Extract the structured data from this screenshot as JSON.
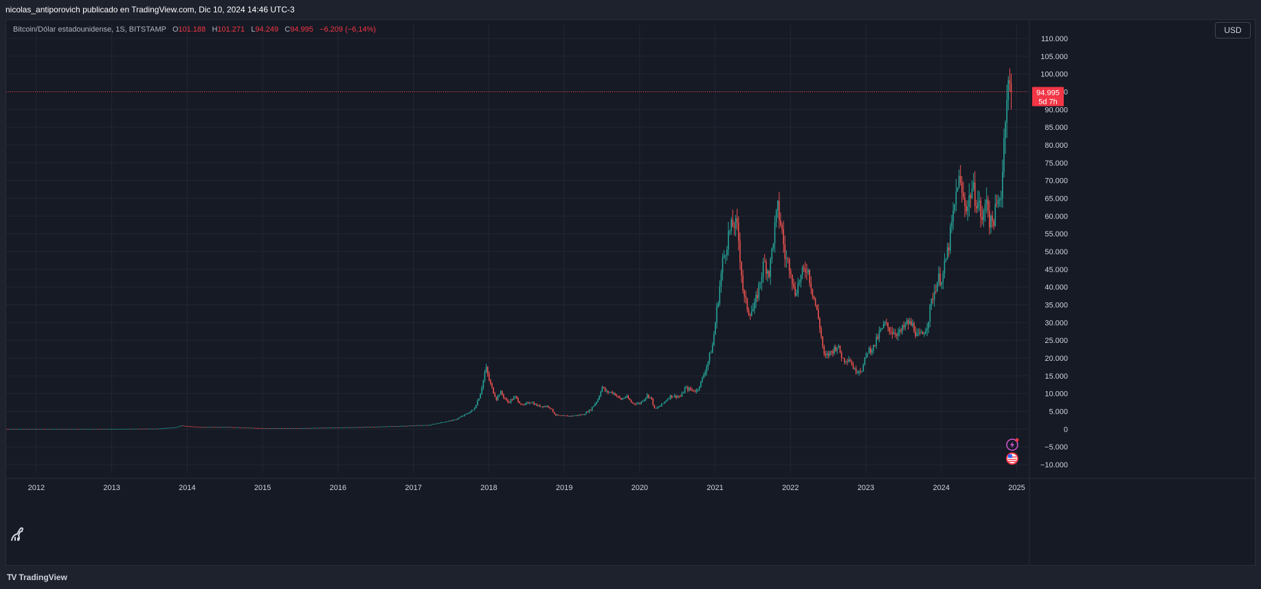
{
  "header": {
    "publish_line": "nicolas_antiporovich publicado en TradingView.com, Dic 10, 2024 14:46 UTC-3"
  },
  "legend": {
    "symbol": "Bitcoin/Dólar estadounidense, 1S, BITSTAMP",
    "o_label": "O",
    "o_value": "101.188",
    "h_label": "H",
    "h_value": "101.271",
    "l_label": "L",
    "l_value": "94.249",
    "c_label": "C",
    "c_value": "94.995",
    "change": "−6.209 (−6,14%)"
  },
  "currency_button": "USD",
  "price_tag": {
    "price": "94.995",
    "countdown": "5d 7h"
  },
  "footer": {
    "brand": "TradingView",
    "brand_mark": "TV"
  },
  "colors": {
    "up": "#26a69a",
    "down": "#ef5350",
    "last_price": "#f23645",
    "grid": "#232734",
    "axis_text": "#d1d4dc"
  },
  "icons": [
    "dino-icon",
    "lightning-icon",
    "us-flag-icon",
    "tradingview-logo-icon"
  ],
  "chart_data": {
    "type": "candlestick",
    "ylim": [
      -10000,
      110000
    ],
    "xlim": [
      2011.6,
      2025.15
    ],
    "y_ticks": [
      "110.000",
      "105.000",
      "100.000",
      "95.000",
      "90.000",
      "85.000",
      "80.000",
      "75.000",
      "70.000",
      "65.000",
      "60.000",
      "55.000",
      "50.000",
      "45.000",
      "40.000",
      "35.000",
      "30.000",
      "25.000",
      "20.000",
      "15.000",
      "10.000",
      "5.000",
      "0",
      "−5.000",
      "−10.000"
    ],
    "y_tick_values": [
      110000,
      105000,
      100000,
      95000,
      90000,
      85000,
      80000,
      75000,
      70000,
      65000,
      60000,
      55000,
      50000,
      45000,
      40000,
      35000,
      30000,
      25000,
      20000,
      15000,
      10000,
      5000,
      0,
      -5000,
      -10000
    ],
    "x_ticks": [
      "2012",
      "2013",
      "2014",
      "2015",
      "2016",
      "2017",
      "2018",
      "2019",
      "2020",
      "2021",
      "2022",
      "2023",
      "2024",
      "2025"
    ],
    "x_tick_values": [
      2012,
      2013,
      2014,
      2015,
      2016,
      2017,
      2018,
      2019,
      2020,
      2021,
      2022,
      2023,
      2024,
      2025
    ],
    "last_price": 94995,
    "price_path": [
      [
        2011.6,
        5
      ],
      [
        2012.0,
        6
      ],
      [
        2012.5,
        8
      ],
      [
        2013.0,
        13
      ],
      [
        2013.3,
        100
      ],
      [
        2013.6,
        120
      ],
      [
        2013.85,
        500
      ],
      [
        2013.92,
        1000
      ],
      [
        2014.0,
        800
      ],
      [
        2014.2,
        550
      ],
      [
        2014.5,
        600
      ],
      [
        2014.8,
        380
      ],
      [
        2015.0,
        250
      ],
      [
        2015.5,
        250
      ],
      [
        2015.9,
        400
      ],
      [
        2016.0,
        430
      ],
      [
        2016.5,
        650
      ],
      [
        2016.9,
        900
      ],
      [
        2017.0,
        1000
      ],
      [
        2017.2,
        1100
      ],
      [
        2017.4,
        2000
      ],
      [
        2017.55,
        2600
      ],
      [
        2017.7,
        4200
      ],
      [
        2017.8,
        5500
      ],
      [
        2017.88,
        9500
      ],
      [
        2017.93,
        14000
      ],
      [
        2017.96,
        17500
      ],
      [
        2018.0,
        14000
      ],
      [
        2018.05,
        11000
      ],
      [
        2018.1,
        8500
      ],
      [
        2018.15,
        10500
      ],
      [
        2018.25,
        7500
      ],
      [
        2018.35,
        9000
      ],
      [
        2018.45,
        6500
      ],
      [
        2018.55,
        7800
      ],
      [
        2018.65,
        6500
      ],
      [
        2018.8,
        6400
      ],
      [
        2018.88,
        4000
      ],
      [
        2018.95,
        3700
      ],
      [
        2019.1,
        3700
      ],
      [
        2019.25,
        4100
      ],
      [
        2019.35,
        5500
      ],
      [
        2019.45,
        8500
      ],
      [
        2019.5,
        12000
      ],
      [
        2019.55,
        10500
      ],
      [
        2019.65,
        10300
      ],
      [
        2019.75,
        8300
      ],
      [
        2019.82,
        9200
      ],
      [
        2019.9,
        7300
      ],
      [
        2020.0,
        7200
      ],
      [
        2020.1,
        9500
      ],
      [
        2020.15,
        8800
      ],
      [
        2020.2,
        5500
      ],
      [
        2020.3,
        7000
      ],
      [
        2020.4,
        9300
      ],
      [
        2020.55,
        9200
      ],
      [
        2020.6,
        11500
      ],
      [
        2020.75,
        10700
      ],
      [
        2020.82,
        13500
      ],
      [
        2020.9,
        18500
      ],
      [
        2020.97,
        24000
      ],
      [
        2021.02,
        33000
      ],
      [
        2021.1,
        47000
      ],
      [
        2021.18,
        55000
      ],
      [
        2021.25,
        58000
      ],
      [
        2021.3,
        56000
      ],
      [
        2021.38,
        37000
      ],
      [
        2021.45,
        33000
      ],
      [
        2021.52,
        34000
      ],
      [
        2021.58,
        40000
      ],
      [
        2021.65,
        47000
      ],
      [
        2021.72,
        44000
      ],
      [
        2021.78,
        55000
      ],
      [
        2021.83,
        62000
      ],
      [
        2021.88,
        57000
      ],
      [
        2021.93,
        48000
      ],
      [
        2022.0,
        46000
      ],
      [
        2022.05,
        38000
      ],
      [
        2022.12,
        42000
      ],
      [
        2022.22,
        46000
      ],
      [
        2022.3,
        38000
      ],
      [
        2022.38,
        30000
      ],
      [
        2022.45,
        20000
      ],
      [
        2022.55,
        22000
      ],
      [
        2022.62,
        23500
      ],
      [
        2022.7,
        19500
      ],
      [
        2022.78,
        20000
      ],
      [
        2022.85,
        16500
      ],
      [
        2022.95,
        16800
      ],
      [
        2023.02,
        22000
      ],
      [
        2023.1,
        23000
      ],
      [
        2023.18,
        27000
      ],
      [
        2023.25,
        29500
      ],
      [
        2023.35,
        27500
      ],
      [
        2023.45,
        27000
      ],
      [
        2023.55,
        30000
      ],
      [
        2023.63,
        29000
      ],
      [
        2023.68,
        26000
      ],
      [
        2023.75,
        26500
      ],
      [
        2023.82,
        30000
      ],
      [
        2023.88,
        37000
      ],
      [
        2023.95,
        42000
      ],
      [
        2024.02,
        43000
      ],
      [
        2024.1,
        52000
      ],
      [
        2024.18,
        63000
      ],
      [
        2024.22,
        71000
      ],
      [
        2024.3,
        64000
      ],
      [
        2024.35,
        63000
      ],
      [
        2024.4,
        68000
      ],
      [
        2024.5,
        63000
      ],
      [
        2024.55,
        58000
      ],
      [
        2024.6,
        66000
      ],
      [
        2024.65,
        57000
      ],
      [
        2024.7,
        60000
      ],
      [
        2024.75,
        63000
      ],
      [
        2024.8,
        68000
      ],
      [
        2024.85,
        90000
      ],
      [
        2024.88,
        97000
      ],
      [
        2024.9,
        96000
      ],
      [
        2024.94,
        94995
      ]
    ]
  }
}
